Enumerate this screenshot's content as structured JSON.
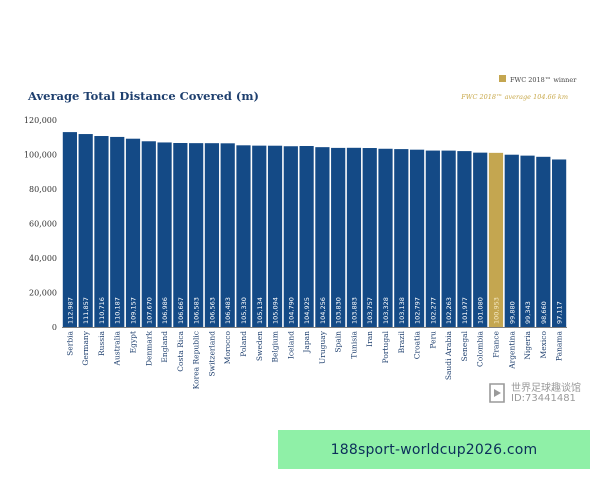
{
  "chart_data": {
    "type": "bar",
    "title": "Average Total Distance Covered (m)",
    "legend_label": "FWC 2018™ winner",
    "average_label": "FWC 2018™ average 104.66 km",
    "categories": [
      "Serbia",
      "Germany",
      "Russia",
      "Australia",
      "Egypt",
      "Denmark",
      "England",
      "Costa Rica",
      "Korea Republic",
      "Switzerland",
      "Morocco",
      "Poland",
      "Sweden",
      "Belgium",
      "Iceland",
      "Japan",
      "Uruguay",
      "Spain",
      "Tunisia",
      "Iran",
      "Portugal",
      "Brazil",
      "Croatia",
      "Peru",
      "Saudi Arabia",
      "Senegal",
      "Colombia",
      "France",
      "Argentina",
      "Nigeria",
      "Mexico",
      "Panama"
    ],
    "values": [
      112987,
      111857,
      110716,
      110187,
      109157,
      107670,
      106986,
      106667,
      106583,
      106563,
      106483,
      105330,
      105134,
      105094,
      104790,
      104925,
      104256,
      103830,
      103883,
      103757,
      103328,
      103138,
      102797,
      102277,
      102263,
      101977,
      101080,
      100953,
      99880,
      99343,
      98660,
      97117
    ],
    "value_labels": [
      "112,987",
      "111,857",
      "110,716",
      "110,187",
      "109,157",
      "107,670",
      "106,986",
      "106,667",
      "106,583",
      "106,563",
      "106,483",
      "105,330",
      "105,134",
      "105,094",
      "104,790",
      "104,925",
      "104,256",
      "103,830",
      "103,883",
      "103,757",
      "103,328",
      "103,138",
      "102,797",
      "102,277",
      "102,263",
      "101,977",
      "101,080",
      "100,953",
      "99,880",
      "99,343",
      "98,660",
      "97,117"
    ],
    "highlight_category": "France",
    "y_ticks": [
      0,
      20000,
      40000,
      60000,
      80000,
      100000,
      120000
    ],
    "y_tick_labels": [
      "0",
      "20,000",
      "40,000",
      "60,000",
      "80,000",
      "100,000",
      "120,000"
    ],
    "ylim": [
      0,
      120000
    ],
    "colors": {
      "bar": "#144a86",
      "highlight": "#c4a650",
      "title": "#1e3f6e",
      "axis": "#333333"
    },
    "legend_position": "top-right",
    "grid": false
  },
  "watermark": {
    "line1": "世界足球趣谈馆",
    "line2": "ID:73441481"
  },
  "banner": {
    "text": "188sport-worldcup2026.com"
  }
}
